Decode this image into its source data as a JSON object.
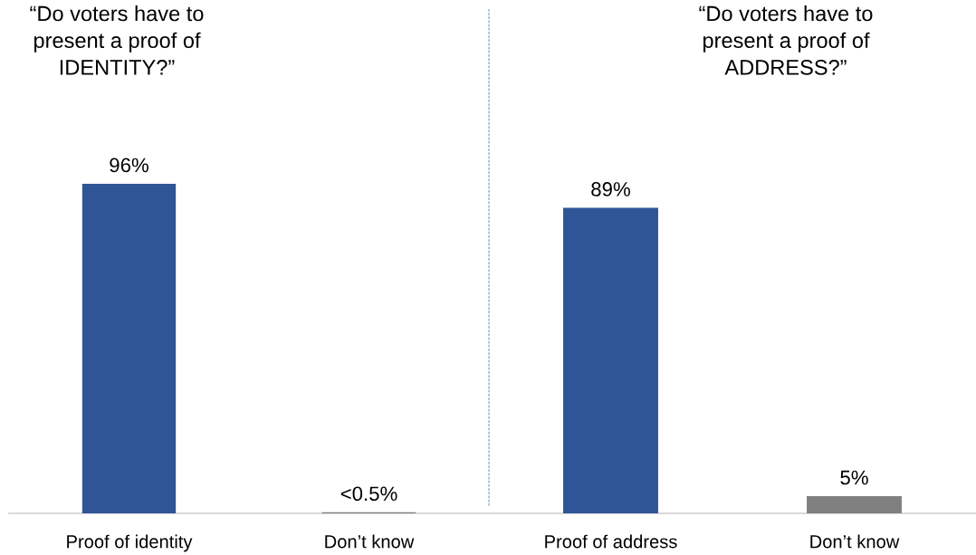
{
  "chart_data": [
    {
      "type": "bar",
      "title": "“Do voters have to\npresent a proof of\nIDENTITY?”",
      "categories": [
        "Proof of identity",
        "Don’t know"
      ],
      "values": [
        96,
        0.3
      ],
      "colors": [
        "#2f5597",
        "#808080"
      ],
      "value_labels": [
        "96%",
        "<0.5%"
      ],
      "tick_labels": "x"
    },
    {
      "type": "bar",
      "title": "“Do voters have to\npresent a proof of\nADDRESS?”",
      "categories": [
        "Proof of address",
        "Don’t know"
      ],
      "values": [
        89,
        5
      ],
      "colors": [
        "#2f5597",
        "#808080"
      ],
      "value_labels": [
        "89%",
        "5%"
      ],
      "tick_labels": "x"
    }
  ]
}
